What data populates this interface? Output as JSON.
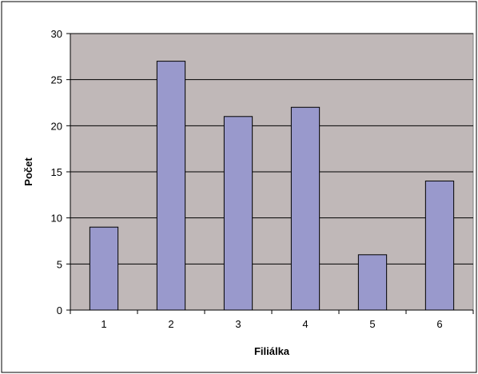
{
  "chart_data": {
    "type": "bar",
    "categories": [
      "1",
      "2",
      "3",
      "4",
      "5",
      "6"
    ],
    "values": [
      9,
      27,
      21,
      22,
      6,
      14
    ],
    "title": "",
    "xlabel": "Filiálka",
    "ylabel": "Počet",
    "ylim": [
      0,
      30
    ],
    "yticks": [
      0,
      5,
      10,
      15,
      20,
      25,
      30
    ],
    "grid": true,
    "legend": "none",
    "colors": {
      "bar_fill": "#9999cc",
      "bar_stroke": "#000000",
      "plot_background": "#c0b8b8",
      "gridline": "#000000",
      "chart_border": "#000000",
      "page_background": "#ffffff"
    }
  }
}
